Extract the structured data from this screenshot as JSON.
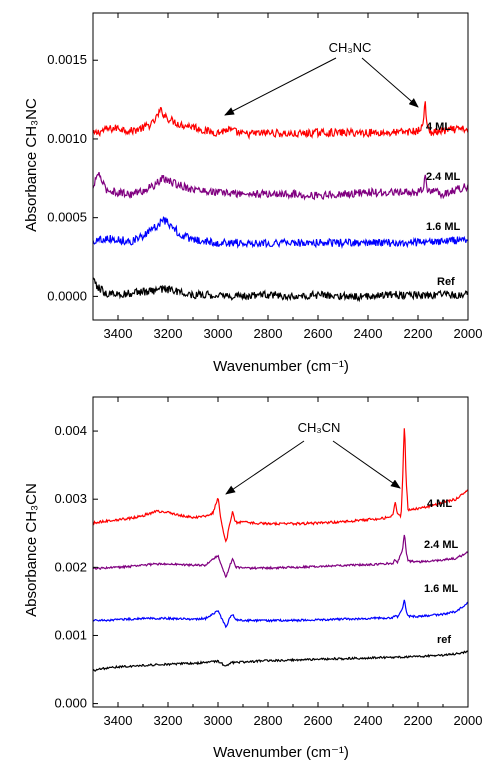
{
  "colors": {
    "red": "#ff0000",
    "purple": "#800080",
    "blue": "#0000ff",
    "black": "#000000"
  },
  "chart_data": [
    {
      "type": "line",
      "xlabel": "Wavenumber (cm⁻¹)",
      "ylabel": "Absorbance CH₃NC",
      "xlim": [
        3500,
        2000
      ],
      "ylim": [
        -0.00015,
        0.0018
      ],
      "x_ticks": [
        "3400",
        "3200",
        "3000",
        "2800",
        "2600",
        "2400",
        "2200",
        "2000"
      ],
      "y_ticks": [
        "0.0000",
        "0.0005",
        "0.0010",
        "0.0015"
      ],
      "annotation": "CH₃NC",
      "series": [
        {
          "name": "4 ML",
          "color": "#ff0000",
          "points": [
            [
              3500,
              0.00103
            ],
            [
              3450,
              0.00106
            ],
            [
              3400,
              0.00107
            ],
            [
              3350,
              0.00105
            ],
            [
              3300,
              0.00107
            ],
            [
              3260,
              0.0011
            ],
            [
              3230,
              0.00118
            ],
            [
              3200,
              0.00113
            ],
            [
              3150,
              0.00109
            ],
            [
              3100,
              0.00108
            ],
            [
              3050,
              0.00105
            ],
            [
              3000,
              0.00104
            ],
            [
              2960,
              0.00106
            ],
            [
              2900,
              0.00103
            ],
            [
              2800,
              0.00104
            ],
            [
              2700,
              0.00103
            ],
            [
              2600,
              0.00104
            ],
            [
              2500,
              0.00104
            ],
            [
              2400,
              0.00104
            ],
            [
              2300,
              0.00104
            ],
            [
              2200,
              0.00105
            ],
            [
              2180,
              0.00108
            ],
            [
              2172,
              0.00127
            ],
            [
              2164,
              0.00107
            ],
            [
              2150,
              0.00104
            ],
            [
              2100,
              0.00105
            ],
            [
              2050,
              0.00106
            ],
            [
              2000,
              0.00106
            ]
          ],
          "noise": 2.5e-05
        },
        {
          "name": "2.4 ML",
          "color": "#800080",
          "points": [
            [
              3500,
              0.00068
            ],
            [
              3480,
              0.00079
            ],
            [
              3450,
              0.00068
            ],
            [
              3400,
              0.00066
            ],
            [
              3350,
              0.00065
            ],
            [
              3300,
              0.00067
            ],
            [
              3250,
              0.00071
            ],
            [
              3220,
              0.00075
            ],
            [
              3180,
              0.00072
            ],
            [
              3100,
              0.00068
            ],
            [
              3000,
              0.00066
            ],
            [
              2900,
              0.00065
            ],
            [
              2800,
              0.00065
            ],
            [
              2700,
              0.00065
            ],
            [
              2600,
              0.00064
            ],
            [
              2500,
              0.00065
            ],
            [
              2400,
              0.00066
            ],
            [
              2300,
              0.00066
            ],
            [
              2200,
              0.00066
            ],
            [
              2180,
              0.00069
            ],
            [
              2172,
              0.00076
            ],
            [
              2164,
              0.00068
            ],
            [
              2100,
              0.00065
            ],
            [
              2000,
              0.0007
            ]
          ],
          "noise": 2.5e-05
        },
        {
          "name": "1.6 ML",
          "color": "#0000ff",
          "points": [
            [
              3500,
              0.00035
            ],
            [
              3450,
              0.00037
            ],
            [
              3400,
              0.00036
            ],
            [
              3350,
              0.00035
            ],
            [
              3300,
              0.00038
            ],
            [
              3250,
              0.00044
            ],
            [
              3220,
              0.00049
            ],
            [
              3180,
              0.00044
            ],
            [
              3150,
              0.00039
            ],
            [
              3100,
              0.00036
            ],
            [
              3000,
              0.00034
            ],
            [
              2900,
              0.00034
            ],
            [
              2800,
              0.00034
            ],
            [
              2700,
              0.00034
            ],
            [
              2600,
              0.00034
            ],
            [
              2500,
              0.00034
            ],
            [
              2400,
              0.00034
            ],
            [
              2300,
              0.00034
            ],
            [
              2200,
              0.00034
            ],
            [
              2100,
              0.00035
            ],
            [
              2000,
              0.00036
            ]
          ],
          "noise": 2.5e-05
        },
        {
          "name": "Ref",
          "color": "#000000",
          "points": [
            [
              3500,
              0.0001
            ],
            [
              3480,
              6e-05
            ],
            [
              3450,
              2e-05
            ],
            [
              3400,
              1e-05
            ],
            [
              3350,
              2e-05
            ],
            [
              3300,
              3e-05
            ],
            [
              3250,
              3e-05
            ],
            [
              3220,
              5e-05
            ],
            [
              3150,
              3e-05
            ],
            [
              3100,
              1e-05
            ],
            [
              3000,
              1e-05
            ],
            [
              2900,
              0.0
            ],
            [
              2800,
              1e-05
            ],
            [
              2700,
              0.0
            ],
            [
              2600,
              1e-05
            ],
            [
              2500,
              0.0
            ],
            [
              2400,
              0.0
            ],
            [
              2300,
              1e-05
            ],
            [
              2200,
              1e-05
            ],
            [
              2100,
              1e-05
            ],
            [
              2000,
              1e-05
            ]
          ],
          "noise": 2.5e-05
        }
      ]
    },
    {
      "type": "line",
      "xlabel": "Wavenumber (cm⁻¹)",
      "ylabel": "Absorbance CH₃CN",
      "xlim": [
        3500,
        2000
      ],
      "ylim": [
        -5e-05,
        0.0045
      ],
      "x_ticks": [
        "3400",
        "3200",
        "3000",
        "2800",
        "2600",
        "2400",
        "2200",
        "2000"
      ],
      "y_ticks": [
        "0.000",
        "0.001",
        "0.002",
        "0.003",
        "0.004"
      ],
      "annotation": "CH₃CN",
      "series": [
        {
          "name": "4 ML",
          "color": "#ff0000",
          "points": [
            [
              3500,
              0.00265
            ],
            [
              3450,
              0.00268
            ],
            [
              3400,
              0.0027
            ],
            [
              3350,
              0.00272
            ],
            [
              3300,
              0.00276
            ],
            [
              3250,
              0.00282
            ],
            [
              3200,
              0.00281
            ],
            [
              3150,
              0.00276
            ],
            [
              3100,
              0.00273
            ],
            [
              3050,
              0.00275
            ],
            [
              3020,
              0.0028
            ],
            [
              3000,
              0.00303
            ],
            [
              2985,
              0.00262
            ],
            [
              2968,
              0.00235
            ],
            [
              2955,
              0.0026
            ],
            [
              2942,
              0.00282
            ],
            [
              2930,
              0.00266
            ],
            [
              2900,
              0.00266
            ],
            [
              2850,
              0.00265
            ],
            [
              2800,
              0.00264
            ],
            [
              2700,
              0.00264
            ],
            [
              2600,
              0.00265
            ],
            [
              2500,
              0.00267
            ],
            [
              2400,
              0.0027
            ],
            [
              2320,
              0.00273
            ],
            [
              2300,
              0.00278
            ],
            [
              2292,
              0.00296
            ],
            [
              2282,
              0.00278
            ],
            [
              2268,
              0.00275
            ],
            [
              2262,
              0.00325
            ],
            [
              2254,
              0.00415
            ],
            [
              2248,
              0.0033
            ],
            [
              2240,
              0.00285
            ],
            [
              2200,
              0.00286
            ],
            [
              2150,
              0.0029
            ],
            [
              2100,
              0.00295
            ],
            [
              2050,
              0.003
            ],
            [
              2020,
              0.00308
            ],
            [
              2000,
              0.00313
            ]
          ],
          "noise": 1.8e-05
        },
        {
          "name": "2.4 ML",
          "color": "#800080",
          "points": [
            [
              3500,
              0.00198
            ],
            [
              3400,
              0.002
            ],
            [
              3300,
              0.00203
            ],
            [
              3250,
              0.00205
            ],
            [
              3200,
              0.00205
            ],
            [
              3100,
              0.00203
            ],
            [
              3050,
              0.00203
            ],
            [
              3000,
              0.00218
            ],
            [
              2985,
              0.002
            ],
            [
              2968,
              0.00186
            ],
            [
              2955,
              0.002
            ],
            [
              2942,
              0.00213
            ],
            [
              2930,
              0.002
            ],
            [
              2900,
              0.00199
            ],
            [
              2800,
              0.00199
            ],
            [
              2700,
              0.002
            ],
            [
              2600,
              0.00201
            ],
            [
              2500,
              0.00203
            ],
            [
              2400,
              0.00204
            ],
            [
              2300,
              0.00206
            ],
            [
              2292,
              0.00212
            ],
            [
              2282,
              0.00208
            ],
            [
              2262,
              0.00225
            ],
            [
              2254,
              0.00251
            ],
            [
              2248,
              0.00225
            ],
            [
              2240,
              0.00209
            ],
            [
              2200,
              0.00208
            ],
            [
              2100,
              0.00211
            ],
            [
              2050,
              0.00213
            ],
            [
              2000,
              0.00222
            ]
          ],
          "noise": 1.5e-05
        },
        {
          "name": "1.6 ML",
          "color": "#0000ff",
          "points": [
            [
              3500,
              0.00122
            ],
            [
              3400,
              0.00123
            ],
            [
              3300,
              0.00125
            ],
            [
              3200,
              0.00125
            ],
            [
              3100,
              0.00124
            ],
            [
              3050,
              0.00125
            ],
            [
              3000,
              0.00136
            ],
            [
              2985,
              0.00124
            ],
            [
              2968,
              0.00112
            ],
            [
              2955,
              0.00124
            ],
            [
              2942,
              0.00131
            ],
            [
              2930,
              0.00123
            ],
            [
              2900,
              0.00122
            ],
            [
              2800,
              0.00122
            ],
            [
              2700,
              0.00122
            ],
            [
              2600,
              0.00123
            ],
            [
              2500,
              0.00124
            ],
            [
              2400,
              0.00125
            ],
            [
              2300,
              0.00126
            ],
            [
              2292,
              0.0013
            ],
            [
              2282,
              0.00127
            ],
            [
              2262,
              0.00138
            ],
            [
              2254,
              0.00155
            ],
            [
              2248,
              0.00137
            ],
            [
              2240,
              0.00128
            ],
            [
              2200,
              0.00128
            ],
            [
              2100,
              0.00131
            ],
            [
              2050,
              0.00135
            ],
            [
              2000,
              0.00148
            ]
          ],
          "noise": 1.5e-05
        },
        {
          "name": "ref",
          "color": "#000000",
          "points": [
            [
              3500,
              0.00048
            ],
            [
              3450,
              0.00052
            ],
            [
              3400,
              0.00054
            ],
            [
              3300,
              0.00056
            ],
            [
              3200,
              0.00058
            ],
            [
              3100,
              0.00059
            ],
            [
              3000,
              0.00062
            ],
            [
              2968,
              0.00055
            ],
            [
              2950,
              0.0006
            ],
            [
              2900,
              0.00061
            ],
            [
              2800,
              0.00063
            ],
            [
              2700,
              0.00064
            ],
            [
              2600,
              0.00065
            ],
            [
              2500,
              0.00066
            ],
            [
              2400,
              0.00067
            ],
            [
              2300,
              0.00068
            ],
            [
              2200,
              0.00069
            ],
            [
              2100,
              0.00071
            ],
            [
              2050,
              0.00073
            ],
            [
              2000,
              0.00076
            ]
          ],
          "noise": 1.5e-05
        }
      ]
    }
  ]
}
